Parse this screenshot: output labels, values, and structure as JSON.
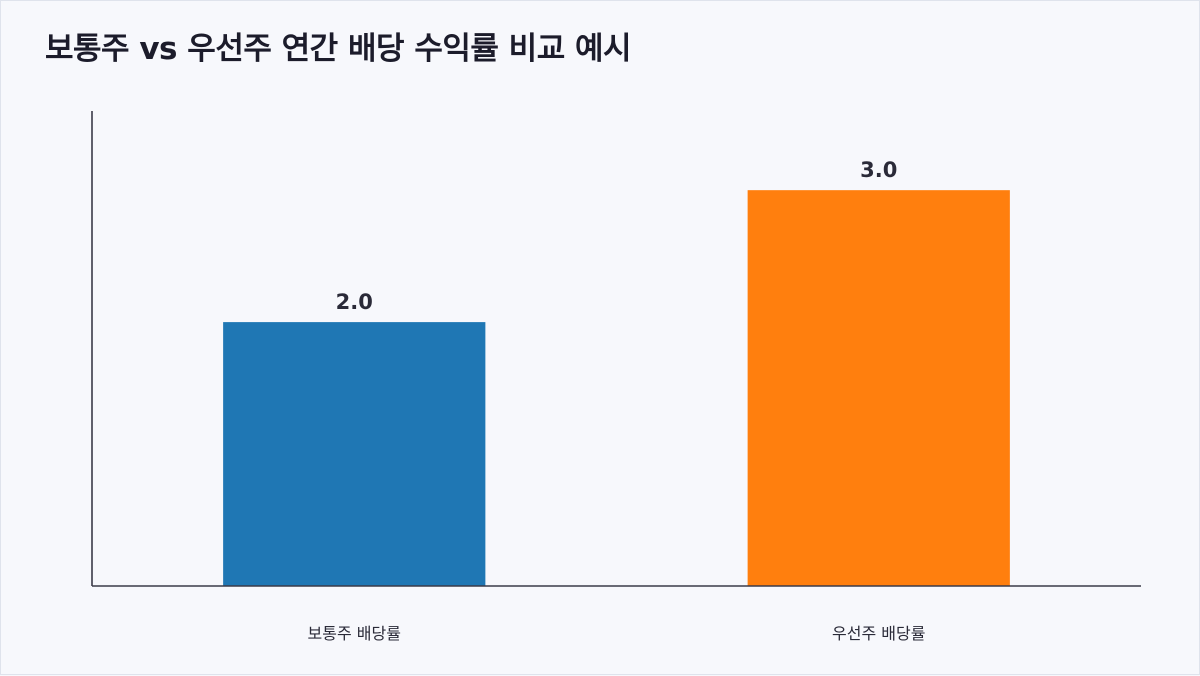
{
  "title": "보통주 vs 우선주 연간 배당 수익률 비교 예시",
  "chart_data": {
    "type": "bar",
    "title": "보통주 vs 우선주 연간 배당 수익률 비교 예시",
    "categories": [
      "보통주 배당률",
      "우선주 배당률"
    ],
    "values": [
      2.0,
      3.0
    ],
    "value_labels": [
      "2.0",
      "3.0"
    ],
    "colors": [
      "#1f77b4",
      "#ff7f0e"
    ],
    "xlabel": "",
    "ylabel": "",
    "ylim": [
      0,
      3.6
    ],
    "grid": false,
    "legend": "none"
  }
}
